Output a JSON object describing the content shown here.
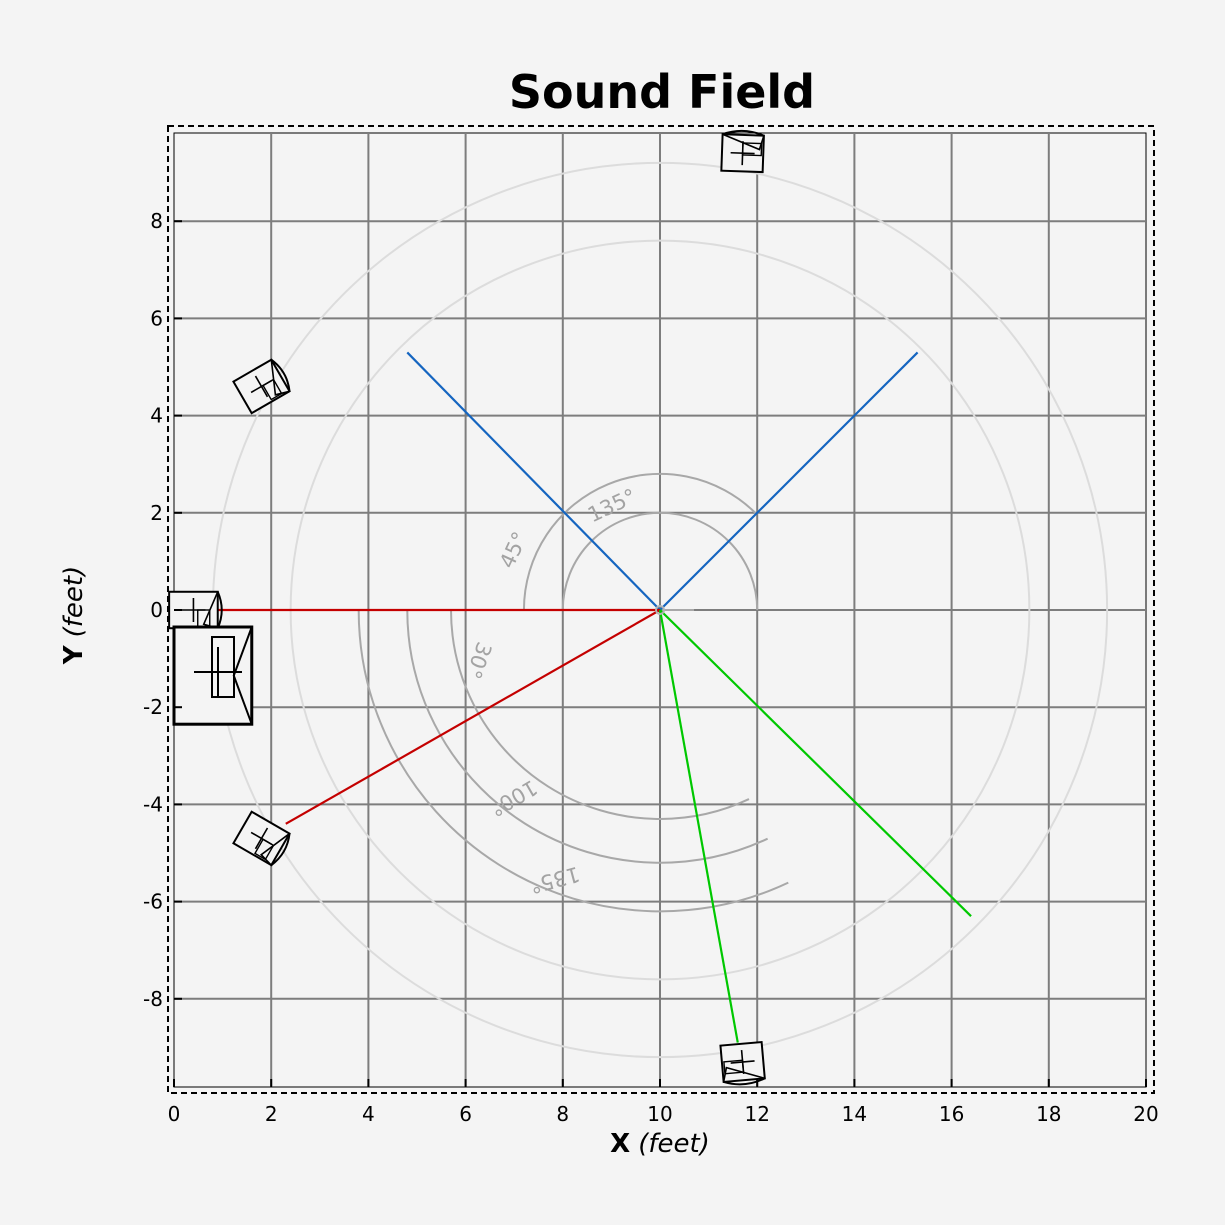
{
  "chart_data": {
    "type": "diagram",
    "title": "Sound Field",
    "xlabel_bold": "X",
    "xlabel_italic": "(feet)",
    "ylabel_bold": "Y",
    "ylabel_italic": "(feet)",
    "xlim": [
      0,
      20
    ],
    "ylim": [
      -9.8,
      9.8
    ],
    "x_ticks": [
      0,
      2,
      4,
      6,
      8,
      10,
      12,
      14,
      16,
      18,
      20
    ],
    "y_ticks": [
      -8,
      -6,
      -4,
      -2,
      0,
      2,
      4,
      6,
      8
    ],
    "y_tick_labels": [
      "-8",
      "-6",
      "-4",
      "-2",
      "0",
      "2",
      "4",
      "6",
      "8"
    ],
    "grid": true,
    "listener": [
      10,
      0
    ],
    "reference_circles_radius": [
      7.6,
      9.2
    ],
    "front_arc": {
      "radius": 2.0,
      "label": "135°"
    },
    "front_arc_small": {
      "radius": 2.8,
      "label": "45°"
    },
    "rear_arcs": [
      {
        "radius": 4.3,
        "label": "30°"
      },
      {
        "radius": 5.2,
        "label": "100°"
      },
      {
        "radius": 6.2,
        "label": "135°"
      }
    ],
    "lines": [
      {
        "color": "#1565c0",
        "from": [
          10,
          0
        ],
        "to": [
          4.8,
          5.3
        ]
      },
      {
        "color": "#1565c0",
        "from": [
          10,
          0
        ],
        "to": [
          15.3,
          5.3
        ]
      },
      {
        "color": "#c40000",
        "from": [
          10,
          0
        ],
        "to": [
          0.9,
          0
        ]
      },
      {
        "color": "#c40000",
        "from": [
          10,
          0
        ],
        "to": [
          2.3,
          -4.4
        ]
      },
      {
        "color": "#00c800",
        "from": [
          10,
          0
        ],
        "to": [
          11.6,
          -8.9
        ]
      },
      {
        "color": "#00c800",
        "from": [
          10,
          0
        ],
        "to": [
          16.4,
          -6.3
        ]
      }
    ],
    "speakers": [
      {
        "x": 0.4,
        "y": 0.0,
        "w": 1.0,
        "h": 0.75,
        "angle": 0
      },
      {
        "x": 1.8,
        "y": 4.6,
        "w": 0.9,
        "h": 0.75,
        "angle": 30
      },
      {
        "x": 1.8,
        "y": -4.7,
        "w": 0.9,
        "h": 0.75,
        "angle": -30
      },
      {
        "x": 11.7,
        "y": 9.4,
        "w": 0.75,
        "h": 0.85,
        "angle": 88
      },
      {
        "x": 11.7,
        "y": -9.3,
        "w": 0.75,
        "h": 0.85,
        "angle": -85
      }
    ],
    "subwoofer": {
      "x": 0,
      "y": -0.35,
      "w": 1.6,
      "h": 2.0
    }
  }
}
